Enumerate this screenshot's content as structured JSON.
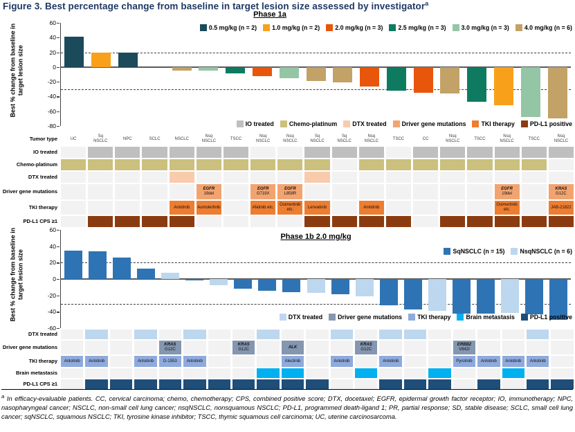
{
  "figure": {
    "title": "Figure 3. Best percentage change from baseline in target lesion size assessed by investigator",
    "title_sup": "a",
    "title_color": "#1f3864",
    "footnote_sup": "a",
    "footnote": "In efficacy-evaluable patients. CC, cervical carcinoma; chemo, chemotherapy; CPS, combined positive score; DTX, docetaxel; EGFR, epidermal growth factor receptor; IO, immunotherapy; NPC, nasopharyngeal cancer; NSCLC, non-small cell lung cancer; nsqNSCLC, nonsquamous NSCLC; PD-L1, programmed death-ligand 1; PR, partial response; SD, stable disease; SCLC, small cell lung cancer; sqNSCLC, squamous NSCLC; TKI, tyrosine kinase inhibitor; TSCC, thymic squamous cell carcinoma; UC, uterine carcinosarcoma."
  },
  "chart_data": [
    {
      "id": "phase1a",
      "type": "bar",
      "title": "Phase 1a",
      "ylabel": "Best % change from baseline in target lesion size",
      "ylim": [
        -80,
        60
      ],
      "yticks": [
        60,
        40,
        20,
        0,
        -20,
        -40,
        -60,
        -80
      ],
      "reference_lines": [
        20,
        -30
      ],
      "grid": false,
      "legend_position": "top-right",
      "series_colors": {
        "0.5": "#1b4a5a",
        "1.0": "#f9a01b",
        "2.0": "#e8560c",
        "2.5": "#0e7b60",
        "3.0": "#94c6a5",
        "4.0": "#c2a266"
      },
      "legend": [
        {
          "label": "0.5 mg/kg (n = 2)",
          "color": "#1b4a5a"
        },
        {
          "label": "1.0 mg/kg (n = 2)",
          "color": "#f9a01b"
        },
        {
          "label": "2.0 mg/kg (n = 3)",
          "color": "#e8560c"
        },
        {
          "label": "2.5 mg/kg (n = 3)",
          "color": "#0e7b60"
        },
        {
          "label": "3.0 mg/kg (n = 3)",
          "color": "#94c6a5"
        },
        {
          "label": "4.0 mg/kg (n = 6)",
          "color": "#c2a266"
        }
      ],
      "bars": [
        {
          "value": 41,
          "group": "0.5"
        },
        {
          "value": 20,
          "group": "1.0"
        },
        {
          "value": 20,
          "group": "0.5"
        },
        {
          "value": 0,
          "group": "4.0"
        },
        {
          "value": -5,
          "group": "4.0"
        },
        {
          "value": -5,
          "group": "3.0"
        },
        {
          "value": -9,
          "group": "2.5"
        },
        {
          "value": -12,
          "group": "2.0"
        },
        {
          "value": -15,
          "group": "3.0"
        },
        {
          "value": -19,
          "group": "4.0"
        },
        {
          "value": -21,
          "group": "4.0"
        },
        {
          "value": -26,
          "group": "2.0"
        },
        {
          "value": -32,
          "group": "2.5"
        },
        {
          "value": -35,
          "group": "2.0"
        },
        {
          "value": -36,
          "group": "4.0"
        },
        {
          "value": -47,
          "group": "2.5"
        },
        {
          "value": -52,
          "group": "1.0"
        },
        {
          "value": -68,
          "group": "3.0"
        },
        {
          "value": -70,
          "group": "4.0"
        }
      ],
      "bottom_legend": [
        {
          "label": "IO treated",
          "color": "#bfbfbf"
        },
        {
          "label": "Chemo-platinum",
          "color": "#cbc07d"
        },
        {
          "label": "DTX treated",
          "color": "#f8cbad"
        },
        {
          "label": "Driver gene mutations",
          "color": "#f2a470"
        },
        {
          "label": "TKI therapy",
          "color": "#ed7d31"
        },
        {
          "label": "PD-L1 positive",
          "color": "#8a3c10"
        }
      ],
      "annotation_grid": {
        "off_color": "#f2f2f2",
        "rows": [
          {
            "label": "Tumor type",
            "kind": "text",
            "values": [
              "UC",
              "Sq|NSCLC",
              "NPC",
              "SCLC",
              "NSCLC",
              "Nsq|NSCLC",
              "TSCC",
              "Nsq|NSCLC",
              "Nsq|NSCLC",
              "Sq|NSCLC",
              "Sq|NSCLC",
              "Nsq|NSCLC",
              "TSCC",
              "CC",
              "Nsq|NSCLC",
              "TSCC",
              "Nsq|NSCLC",
              "TSCC",
              "Nsq|NSCLC"
            ]
          },
          {
            "label": "IO treated",
            "kind": "bool",
            "color": "#bfbfbf",
            "values": [
              0,
              1,
              1,
              1,
              1,
              1,
              1,
              0,
              0,
              1,
              1,
              1,
              0,
              1,
              1,
              1,
              1,
              1,
              1
            ]
          },
          {
            "label": "Chemo-platinum",
            "kind": "bool",
            "color": "#cbc07d",
            "values": [
              1,
              1,
              1,
              1,
              1,
              1,
              1,
              1,
              1,
              1,
              0,
              1,
              1,
              1,
              1,
              1,
              1,
              1,
              0
            ]
          },
          {
            "label": "DTX treated",
            "kind": "bool",
            "color": "#f8cbad",
            "values": [
              0,
              0,
              0,
              0,
              1,
              0,
              0,
              0,
              0,
              1,
              0,
              0,
              0,
              0,
              0,
              0,
              0,
              0,
              0
            ]
          },
          {
            "label": "Driver gene mutations",
            "kind": "gene",
            "color": "#f2a470",
            "values": [
              null,
              null,
              null,
              null,
              null,
              {
                "gene": "EGFR",
                "mut": "19del"
              },
              null,
              {
                "gene": "EGFR",
                "mut": "G719X"
              },
              {
                "gene": "EGFR",
                "mut": "L858R"
              },
              null,
              null,
              null,
              null,
              null,
              null,
              null,
              {
                "gene": "EGFR",
                "mut": "19del"
              },
              null,
              {
                "gene": "KRAS",
                "mut": "G12C"
              }
            ]
          },
          {
            "label": "TKI therapy",
            "kind": "label",
            "color": "#ed7d31",
            "values": [
              null,
              null,
              null,
              null,
              "Anlotinib",
              "Aumolertinib",
              null,
              "Afatinib etc.",
              "Osimertinib etc.",
              "Lenvatinib",
              null,
              "Anlotinib",
              null,
              null,
              null,
              null,
              "Osimertinib etc.",
              null,
              "JAB-21822"
            ]
          },
          {
            "label": "PD-L1 CPS ≥1",
            "kind": "bool",
            "color": "#8a3c10",
            "values": [
              0,
              1,
              1,
              1,
              1,
              0,
              0,
              0,
              0,
              1,
              1,
              1,
              1,
              0,
              1,
              1,
              1,
              1,
              1
            ]
          }
        ]
      }
    },
    {
      "id": "phase1b",
      "type": "bar",
      "title": "Phase 1b 2.0 mg/kg",
      "ylabel": "Best % change from baseline in target lesion size",
      "ylim": [
        -60,
        60
      ],
      "yticks": [
        60,
        40,
        20,
        0,
        -20,
        -40,
        -60
      ],
      "reference_lines": [
        20,
        -30
      ],
      "grid": false,
      "legend_position": "top-right",
      "series_colors": {
        "Sq": "#2e74b5",
        "Nsq": "#bdd7ee"
      },
      "legend": [
        {
          "label": "SqNSCLC (n = 15)",
          "color": "#2e74b5"
        },
        {
          "label": "NsqNSCLC (n = 6)",
          "color": "#bdd7ee"
        }
      ],
      "bars": [
        {
          "value": 35,
          "group": "Sq"
        },
        {
          "value": 34,
          "group": "Sq"
        },
        {
          "value": 26,
          "group": "Sq"
        },
        {
          "value": 13,
          "group": "Sq"
        },
        {
          "value": 8,
          "group": "Nsq"
        },
        {
          "value": -2,
          "group": "Sq"
        },
        {
          "value": -8,
          "group": "Nsq"
        },
        {
          "value": -12,
          "group": "Sq"
        },
        {
          "value": -14,
          "group": "Sq"
        },
        {
          "value": -16,
          "group": "Sq"
        },
        {
          "value": -17,
          "group": "Nsq"
        },
        {
          "value": -19,
          "group": "Sq"
        },
        {
          "value": -21,
          "group": "Nsq"
        },
        {
          "value": -32,
          "group": "Sq"
        },
        {
          "value": -37,
          "group": "Sq"
        },
        {
          "value": -39,
          "group": "Nsq"
        },
        {
          "value": -42,
          "group": "Sq"
        },
        {
          "value": -42,
          "group": "Sq"
        },
        {
          "value": -41,
          "group": "Nsq"
        },
        {
          "value": -43,
          "group": "Sq"
        },
        {
          "value": -50,
          "group": "Sq"
        }
      ],
      "bottom_legend": [
        {
          "label": "DTX treated",
          "color": "#bdd7ee"
        },
        {
          "label": "Driver gene mutations",
          "color": "#8496b0"
        },
        {
          "label": "TKI therapy",
          "color": "#8faadc"
        },
        {
          "label": "Brain metastasis",
          "color": "#00b0f0"
        },
        {
          "label": "PD-L1 positive",
          "color": "#1f4e79"
        }
      ],
      "annotation_grid": {
        "off_color": "#f2f2f2",
        "rows": [
          {
            "label": "DTX treated",
            "kind": "bool",
            "color": "#bdd7ee",
            "values": [
              0,
              1,
              0,
              1,
              0,
              1,
              0,
              0,
              1,
              0,
              0,
              1,
              0,
              1,
              1,
              0,
              0,
              0,
              0,
              1,
              0
            ]
          },
          {
            "label": "Driver gene mutations",
            "kind": "gene",
            "color": "#8496b0",
            "values": [
              null,
              null,
              null,
              null,
              {
                "gene": "KRAS",
                "mut": "G12C"
              },
              null,
              null,
              {
                "gene": "KRAS",
                "mut": "G12C"
              },
              null,
              {
                "gene": "ALK",
                "mut": ""
              },
              null,
              null,
              {
                "gene": "KRAS",
                "mut": "G12C"
              },
              null,
              null,
              null,
              {
                "gene": "ERBB2",
                "mut": "V842I"
              },
              null,
              null,
              null,
              null
            ]
          },
          {
            "label": "TKI therapy",
            "kind": "label",
            "color": "#8faadc",
            "values": [
              "Anlotinib",
              "Anlotinib",
              null,
              "Anlotinib",
              "D-1553",
              "Anlotinib",
              null,
              null,
              null,
              "Alectinib",
              null,
              "Anlotinib",
              null,
              "Anlotinib",
              null,
              null,
              "Pyrotinib",
              "Anlotinib",
              "Anlotinib",
              "Anlotinib",
              null
            ]
          },
          {
            "label": "Brain metastasis",
            "kind": "bool",
            "color": "#00b0f0",
            "values": [
              0,
              0,
              0,
              0,
              0,
              0,
              0,
              0,
              1,
              1,
              0,
              0,
              1,
              0,
              0,
              1,
              0,
              0,
              1,
              0,
              0
            ]
          },
          {
            "label": "PD-L1 CPS ≥1",
            "kind": "bool",
            "color": "#1f4e79",
            "values": [
              0,
              1,
              1,
              1,
              1,
              1,
              1,
              1,
              1,
              1,
              1,
              0,
              0,
              1,
              1,
              1,
              0,
              1,
              0,
              1,
              1
            ]
          }
        ]
      }
    }
  ]
}
